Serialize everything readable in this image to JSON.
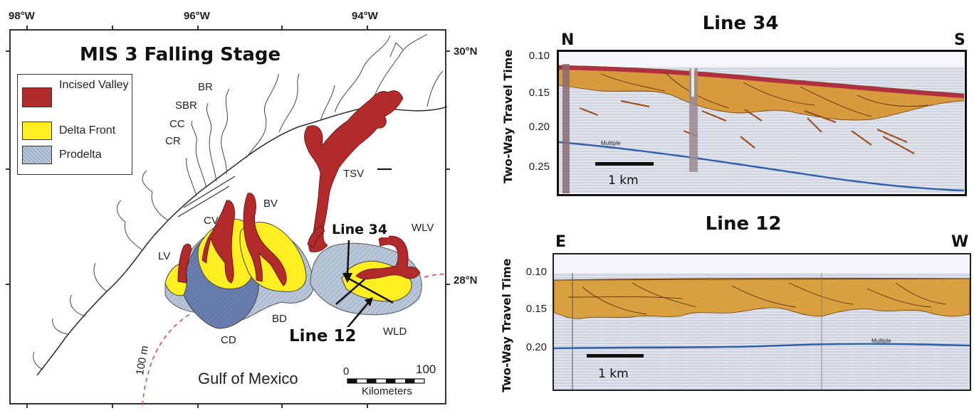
{
  "map": {
    "title": "MIS 3 Falling Stage",
    "longitudes": [
      "98°W",
      "96°W",
      "94°W"
    ],
    "latitudes": [
      "30°N",
      "28°N"
    ],
    "legend": [
      {
        "label": "Incised Valley",
        "color": "#b22a2a"
      },
      {
        "label": "Delta Front",
        "color": "#ffee22"
      },
      {
        "label": "Prodelta",
        "color": "#b8c6d8"
      }
    ],
    "rivers": [
      "BR",
      "SBR",
      "CC",
      "CR"
    ],
    "features": [
      "TSV",
      "BV",
      "CV",
      "LV",
      "WLV",
      "BD",
      "CD",
      "WLD"
    ],
    "line_labels": [
      "Line 34",
      "Line 12"
    ],
    "gulf_label": "Gulf of Mexico",
    "isobath": "100 m",
    "scale": {
      "start": "0",
      "end": "100",
      "unit": "Kilometers"
    }
  },
  "sections": [
    {
      "title": "Line 34",
      "left_dir": "N",
      "right_dir": "S",
      "yaxis_label": "Two-Way Travel Time",
      "ticks": [
        "0.10",
        "0.15",
        "0.20",
        "0.25"
      ],
      "scale_label": "1 km",
      "multiple_label": "Multiple"
    },
    {
      "title": "Line 12",
      "left_dir": "E",
      "right_dir": "W",
      "yaxis_label": "Two-Way Travel Time",
      "ticks": [
        "0.10",
        "0.15",
        "0.20"
      ],
      "scale_label": "1 km",
      "multiple_label": "Multiple"
    }
  ]
}
